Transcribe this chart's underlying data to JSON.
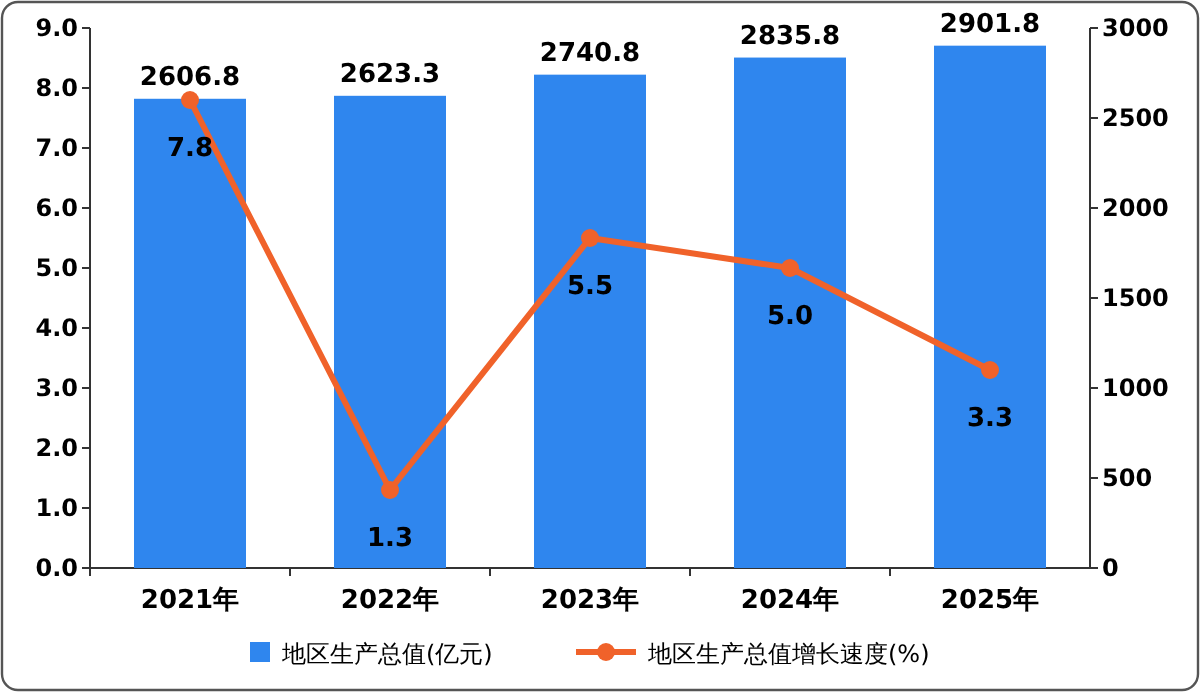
{
  "chart_data": {
    "type": "bar",
    "categories": [
      "2021年",
      "2022年",
      "2023年",
      "2024年",
      "2025年"
    ],
    "series": [
      {
        "name": "地区生产总值(亿元)",
        "axis": "y2",
        "color": "#2f86ee",
        "values": [
          2606.8,
          2623.3,
          2740.8,
          2835.8,
          2901.8
        ]
      },
      {
        "name": "地区生产总值增长速度(%)",
        "type": "line",
        "axis": "y",
        "color": "#f0622a",
        "marker": "circle",
        "values": [
          7.8,
          1.3,
          5.5,
          5.0,
          3.3
        ],
        "value_labels": [
          "7.8",
          "1.3",
          "5.5",
          "5.0",
          "3.3"
        ]
      }
    ],
    "ylim": [
      0,
      9
    ],
    "yticks": [
      {
        "value": 0,
        "label": "0.0"
      },
      {
        "value": 1,
        "label": "1.0"
      },
      {
        "value": 2,
        "label": "2.0"
      },
      {
        "value": 3,
        "label": "3.0"
      },
      {
        "value": 4,
        "label": "4.0"
      },
      {
        "value": 5,
        "label": "5.0"
      },
      {
        "value": 6,
        "label": "6.0"
      },
      {
        "value": 7,
        "label": "7.0"
      },
      {
        "value": 8,
        "label": "8.0"
      },
      {
        "value": 9,
        "label": "9.0"
      }
    ],
    "y2lim": [
      0,
      3000
    ],
    "y2ticks": [
      0,
      500,
      1000,
      1500,
      2000,
      2500,
      3000
    ],
    "data_labels": true,
    "legend": "bottom"
  }
}
